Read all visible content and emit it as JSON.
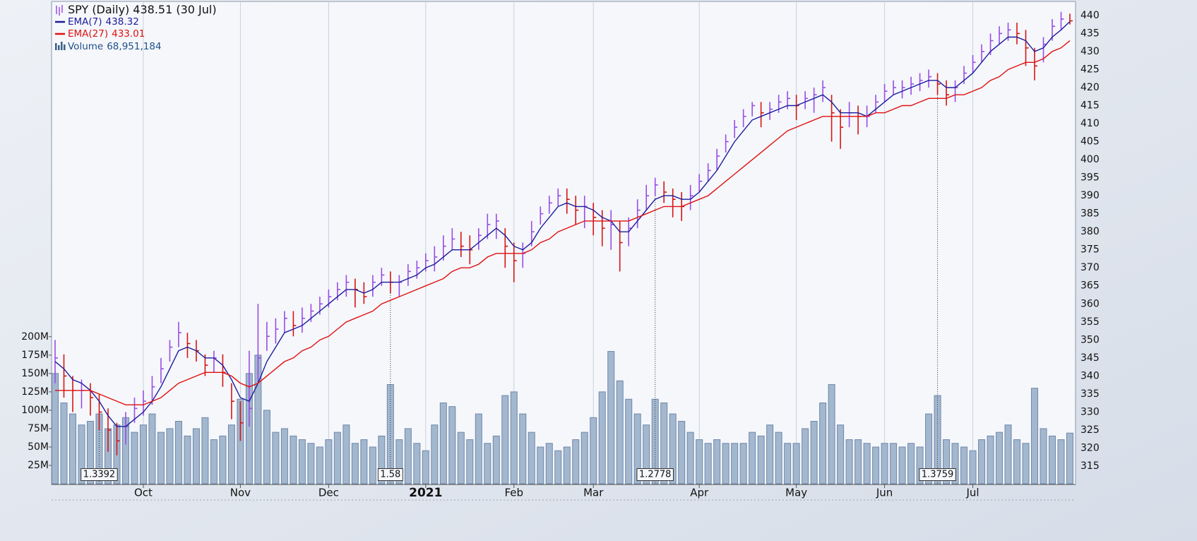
{
  "chart_data": {
    "type": "stock",
    "categories": [
      null,
      null,
      null,
      null,
      null,
      null,
      null,
      null,
      null,
      null,
      "Oct",
      null,
      null,
      null,
      null,
      null,
      null,
      null,
      null,
      null,
      null,
      "Nov",
      null,
      null,
      null,
      null,
      null,
      null,
      null,
      null,
      null,
      "Dec",
      null,
      null,
      null,
      null,
      null,
      null,
      null,
      null,
      null,
      null,
      "2021",
      null,
      null,
      null,
      null,
      null,
      null,
      null,
      null,
      null,
      "Feb",
      null,
      null,
      null,
      null,
      null,
      null,
      null,
      null,
      "Mar",
      null,
      null,
      null,
      null,
      null,
      null,
      null,
      null,
      null,
      null,
      null,
      "Apr",
      null,
      null,
      null,
      null,
      null,
      null,
      null,
      null,
      null,
      null,
      "May",
      null,
      null,
      null,
      null,
      null,
      null,
      null,
      null,
      null,
      "Jun",
      null,
      null,
      null,
      null,
      null,
      null,
      null,
      null,
      null,
      "Jul",
      null,
      null,
      null,
      null,
      null,
      null,
      null,
      null,
      null,
      null,
      null
    ],
    "markers": [
      null,
      null,
      null,
      null,
      null,
      "1.3392",
      null,
      null,
      null,
      null,
      null,
      null,
      null,
      null,
      null,
      null,
      null,
      null,
      null,
      null,
      null,
      null,
      null,
      null,
      null,
      null,
      null,
      null,
      null,
      null,
      null,
      null,
      null,
      null,
      null,
      null,
      null,
      null,
      "1.58",
      null,
      null,
      null,
      null,
      null,
      null,
      null,
      null,
      null,
      null,
      null,
      null,
      null,
      null,
      null,
      null,
      null,
      null,
      null,
      null,
      null,
      null,
      null,
      null,
      null,
      null,
      null,
      null,
      null,
      "1.2778",
      null,
      null,
      null,
      null,
      null,
      null,
      null,
      null,
      null,
      null,
      null,
      null,
      null,
      null,
      null,
      null,
      null,
      null,
      null,
      null,
      null,
      null,
      null,
      null,
      null,
      null,
      null,
      null,
      null,
      null,
      null,
      "1.3759",
      null,
      null,
      null,
      null,
      null,
      null,
      null,
      null,
      null,
      null,
      null,
      null,
      null,
      null,
      null
    ],
    "series": [
      {
        "name": "SPY (Daily)",
        "legend_value": "438.51 (30 Jul)",
        "type": "hlc",
        "axis": "y2",
        "up_color": "#9a4ce6",
        "down_color": "#d81414",
        "high": [
          350,
          346,
          340,
          339,
          338,
          335,
          331,
          327,
          330,
          334,
          336,
          340,
          345,
          350,
          355,
          352,
          350,
          346,
          347,
          346,
          338,
          333,
          347,
          360,
          355,
          356,
          358,
          358,
          359,
          360,
          362,
          364,
          366,
          368,
          367,
          366,
          368,
          370,
          369,
          368,
          371,
          372,
          374,
          376,
          379,
          381,
          380,
          379,
          381,
          385,
          385,
          381,
          377,
          377,
          383,
          387,
          390,
          392,
          392,
          390,
          390,
          388,
          386,
          386,
          383,
          384,
          389,
          393,
          395,
          394,
          392,
          391,
          393,
          396,
          399,
          403,
          407,
          411,
          414,
          416,
          416,
          416,
          418,
          419,
          418,
          419,
          420,
          422,
          418,
          414,
          416,
          415,
          415,
          418,
          421,
          422,
          422,
          423,
          424,
          425,
          424,
          422,
          422,
          426,
          429,
          432,
          435,
          437,
          438,
          438,
          436,
          431,
          434,
          439,
          441,
          440.5
        ],
        "low": [
          338,
          334,
          330,
          331,
          329,
          325,
          319,
          318,
          321,
          327,
          329,
          332,
          338,
          344,
          348,
          345,
          344,
          340,
          341,
          337,
          328,
          322,
          326,
          338,
          347,
          349,
          352,
          351,
          352,
          355,
          357,
          359,
          361,
          362,
          359,
          360,
          362,
          365,
          363,
          362,
          365,
          367,
          369,
          369,
          372,
          375,
          373,
          371,
          375,
          378,
          378,
          370,
          366,
          370,
          376,
          382,
          385,
          387,
          385,
          382,
          381,
          379,
          376,
          375,
          369,
          376,
          381,
          386,
          390,
          388,
          384,
          383,
          386,
          391,
          394,
          397,
          402,
          406,
          409,
          412,
          409,
          411,
          413,
          414,
          411,
          414,
          413,
          416,
          405,
          403,
          409,
          407,
          409,
          413,
          416,
          418,
          417,
          418,
          419,
          420,
          418,
          415,
          416,
          421,
          424,
          427,
          429,
          432,
          433,
          432,
          426,
          422,
          427,
          433,
          436,
          437.5
        ],
        "values": [
          345,
          340,
          336,
          336,
          334,
          330,
          325,
          322,
          326,
          331,
          333,
          337,
          342,
          348,
          352,
          349,
          347,
          343,
          345,
          341,
          333,
          327,
          331,
          345,
          351,
          353,
          356,
          354,
          356,
          358,
          360,
          362,
          364,
          366,
          364,
          362,
          366,
          368,
          366,
          366,
          369,
          370,
          372,
          373,
          376,
          378,
          376,
          375,
          379,
          382,
          383,
          376,
          372,
          374,
          380,
          385,
          388,
          390,
          389,
          386,
          387,
          384,
          381,
          382,
          377,
          381,
          386,
          390,
          393,
          391,
          389,
          387,
          390,
          394,
          397,
          401,
          405,
          409,
          412,
          415,
          413,
          414,
          416,
          417,
          415,
          417,
          418,
          420,
          413,
          409,
          413,
          412,
          412,
          416,
          419,
          420,
          420,
          421,
          422,
          423,
          421,
          418,
          420,
          424,
          427,
          430,
          433,
          435,
          436,
          435,
          431,
          426,
          432,
          437,
          439,
          438.51
        ]
      },
      {
        "name": "EMA(7)",
        "legend_value": "438.32",
        "type": "line",
        "axis": "y2",
        "color": "#1c1c9c",
        "values": [
          344,
          342,
          339,
          338,
          336,
          333,
          329,
          326,
          326,
          328,
          330,
          333,
          337,
          342,
          347,
          348,
          347,
          345,
          345,
          343,
          339,
          334,
          333,
          338,
          344,
          348,
          352,
          353,
          354,
          356,
          358,
          360,
          362,
          364,
          364,
          363,
          364,
          366,
          366,
          366,
          367,
          368,
          370,
          371,
          373,
          375,
          375,
          375,
          377,
          379,
          381,
          379,
          376,
          375,
          377,
          381,
          384,
          387,
          388,
          387,
          387,
          386,
          384,
          383,
          380,
          380,
          383,
          386,
          389,
          390,
          390,
          389,
          389,
          391,
          394,
          397,
          401,
          405,
          408,
          411,
          412,
          413,
          414,
          415,
          415,
          416,
          417,
          418,
          416,
          413,
          413,
          413,
          412,
          414,
          416,
          418,
          419,
          420,
          421,
          422,
          422,
          420,
          420,
          422,
          424,
          427,
          430,
          432,
          434,
          434,
          433,
          430,
          431,
          434,
          436,
          438.32
        ]
      },
      {
        "name": "EMA(27)",
        "legend_value": "433.01",
        "type": "line",
        "axis": "y2",
        "color": "#e01010",
        "values": [
          336,
          336,
          336,
          336,
          336,
          335,
          334,
          333,
          332,
          332,
          332,
          333,
          334,
          336,
          338,
          339,
          340,
          341,
          341,
          341,
          340,
          338,
          337,
          338,
          340,
          342,
          344,
          345,
          347,
          348,
          350,
          351,
          353,
          355,
          356,
          357,
          358,
          360,
          361,
          362,
          363,
          364,
          365,
          366,
          367,
          369,
          370,
          370,
          371,
          373,
          374,
          374,
          374,
          374,
          375,
          377,
          378,
          380,
          381,
          382,
          383,
          383,
          383,
          383,
          383,
          383,
          384,
          385,
          386,
          387,
          387,
          387,
          388,
          389,
          390,
          392,
          394,
          396,
          398,
          400,
          402,
          404,
          406,
          408,
          409,
          410,
          411,
          412,
          412,
          412,
          412,
          412,
          412,
          413,
          413,
          414,
          415,
          415,
          416,
          417,
          417,
          417,
          418,
          418,
          419,
          420,
          422,
          423,
          425,
          426,
          427,
          427,
          428,
          430,
          431,
          433.01
        ]
      },
      {
        "name": "Volume",
        "legend_value": "68,951,184",
        "type": "bar",
        "axis": "y",
        "color": "#a3b7cf",
        "stroke": "#6f88a8",
        "values": [
          150,
          110,
          95,
          80,
          85,
          95,
          75,
          80,
          90,
          70,
          80,
          95,
          70,
          75,
          85,
          65,
          75,
          90,
          60,
          65,
          80,
          115,
          150,
          175,
          100,
          70,
          75,
          65,
          60,
          55,
          50,
          60,
          70,
          80,
          55,
          60,
          50,
          65,
          135,
          60,
          75,
          55,
          45,
          80,
          110,
          105,
          70,
          60,
          95,
          55,
          65,
          120,
          125,
          95,
          70,
          50,
          55,
          45,
          50,
          60,
          70,
          90,
          125,
          180,
          140,
          115,
          95,
          80,
          115,
          110,
          95,
          85,
          70,
          60,
          55,
          60,
          55,
          55,
          55,
          70,
          65,
          80,
          70,
          55,
          55,
          75,
          85,
          110,
          135,
          80,
          60,
          60,
          55,
          50,
          55,
          55,
          50,
          55,
          50,
          95,
          120,
          60,
          55,
          50,
          45,
          60,
          65,
          70,
          80,
          60,
          55,
          130,
          75,
          65,
          60,
          68.951184
        ]
      }
    ],
    "ylim": [
      0,
      655
    ],
    "yticks": [
      {
        "value": 25,
        "label": "25M"
      },
      {
        "value": 50,
        "label": "50M"
      },
      {
        "value": 75,
        "label": "75M"
      },
      {
        "value": 100,
        "label": "100M"
      },
      {
        "value": 125,
        "label": "125M"
      },
      {
        "value": 150,
        "label": "150M"
      },
      {
        "value": 175,
        "label": "175M"
      },
      {
        "value": 200,
        "label": "200M"
      }
    ],
    "y2lim": [
      310.1,
      443.7
    ],
    "y2ticks": [
      315,
      320,
      325,
      330,
      335,
      340,
      345,
      350,
      355,
      360,
      365,
      370,
      375,
      380,
      385,
      390,
      395,
      400,
      405,
      410,
      415,
      420,
      425,
      430,
      435,
      440
    ],
    "grid": true
  }
}
